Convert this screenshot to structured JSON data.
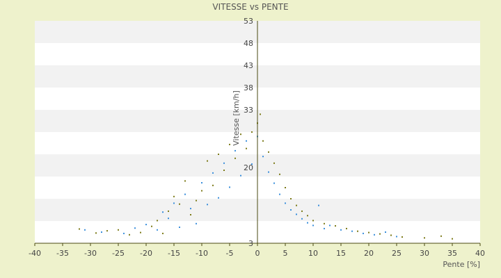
{
  "chart_data": {
    "type": "scatter",
    "title": "VITESSE vs PENTE",
    "xlabel": "Pente [%]",
    "ylabel": "Vitesse [km/h]",
    "xlim": [
      -40,
      40
    ],
    "ylim": [
      3,
      53
    ],
    "x_ticks": [
      "-40",
      "-35",
      "-30",
      "-25",
      "-20",
      "-15",
      "-10",
      "-5",
      "0",
      "5",
      "10",
      "15",
      "20",
      "25",
      "30",
      "35",
      "40"
    ],
    "y_ticks": [
      "3",
      "8",
      "13",
      "18",
      "23",
      "28",
      "33",
      "38",
      "43",
      "48",
      "53"
    ],
    "y_tick_labels_shown": [
      "3",
      "20",
      "33",
      "38",
      "43",
      "48",
      "53"
    ],
    "grid": "horizontal bands",
    "legend": "none",
    "colors": {
      "background": "#eef2cc",
      "plot_band_light": "#ffffff",
      "plot_band_dark": "#f2f2f2",
      "series_olive": "#7c7a18",
      "series_blue": "#3b8fdc",
      "axis": "#4a4a10"
    },
    "series": [
      {
        "color": "#7c7a18",
        "points": [
          [
            -32,
            6.2
          ],
          [
            -29,
            5.3
          ],
          [
            -27,
            5.8
          ],
          [
            -25,
            6.0
          ],
          [
            -23,
            4.9
          ],
          [
            -21,
            5.4
          ],
          [
            -19,
            6.8
          ],
          [
            -18,
            8.1
          ],
          [
            -17,
            5.2
          ],
          [
            -16,
            10.2
          ],
          [
            -15,
            13.5
          ],
          [
            -14,
            11.8
          ],
          [
            -13,
            17.0
          ],
          [
            -12,
            9.4
          ],
          [
            -11,
            12.6
          ],
          [
            -10,
            14.8
          ],
          [
            -9,
            21.5
          ],
          [
            -8,
            16.0
          ],
          [
            -7,
            23.0
          ],
          [
            -6,
            19.4
          ],
          [
            -5,
            25.2
          ],
          [
            -4,
            22.1
          ],
          [
            -3,
            27.5
          ],
          [
            -2,
            24.3
          ],
          [
            -1,
            28.0
          ],
          [
            0,
            30.0
          ],
          [
            0.5,
            32.0
          ],
          [
            1,
            26.0
          ],
          [
            2,
            23.5
          ],
          [
            3,
            21.0
          ],
          [
            4,
            18.5
          ],
          [
            5,
            15.5
          ],
          [
            6,
            13.0
          ],
          [
            7,
            11.5
          ],
          [
            8,
            10.2
          ],
          [
            9,
            9.2
          ],
          [
            10,
            8.1
          ],
          [
            12,
            7.4
          ],
          [
            14,
            6.9
          ],
          [
            16,
            6.3
          ],
          [
            18,
            5.7
          ],
          [
            20,
            5.4
          ],
          [
            22,
            5.1
          ],
          [
            24,
            4.8
          ],
          [
            26,
            4.4
          ],
          [
            30,
            4.2
          ],
          [
            33,
            4.6
          ],
          [
            35,
            4.0
          ]
        ]
      },
      {
        "color": "#3b8fdc",
        "points": [
          [
            -31,
            6.0
          ],
          [
            -28,
            5.5
          ],
          [
            -24,
            5.2
          ],
          [
            -22,
            6.4
          ],
          [
            -20,
            7.2
          ],
          [
            -18,
            6.0
          ],
          [
            -17,
            10.0
          ],
          [
            -16,
            8.6
          ],
          [
            -15,
            12.0
          ],
          [
            -14,
            6.6
          ],
          [
            -13,
            14.0
          ],
          [
            -12,
            10.8
          ],
          [
            -11,
            7.4
          ],
          [
            -10,
            16.6
          ],
          [
            -9,
            11.7
          ],
          [
            -8,
            18.8
          ],
          [
            -7,
            13.2
          ],
          [
            -6,
            21.0
          ],
          [
            -5,
            15.6
          ],
          [
            -4,
            23.8
          ],
          [
            -3,
            18.2
          ],
          [
            -2,
            26.0
          ],
          [
            -1,
            20.8
          ],
          [
            0,
            27.0
          ],
          [
            1,
            22.5
          ],
          [
            2,
            19.0
          ],
          [
            3,
            16.5
          ],
          [
            4,
            14.0
          ],
          [
            5,
            12.0
          ],
          [
            6,
            10.5
          ],
          [
            7,
            9.5
          ],
          [
            8,
            8.5
          ],
          [
            9,
            7.6
          ],
          [
            10,
            7.0
          ],
          [
            11,
            11.5
          ],
          [
            12,
            6.3
          ],
          [
            13,
            7.0
          ],
          [
            15,
            6.0
          ],
          [
            17,
            5.7
          ],
          [
            19,
            5.2
          ],
          [
            21,
            4.9
          ],
          [
            23,
            5.5
          ],
          [
            25,
            4.5
          ]
        ]
      }
    ]
  }
}
